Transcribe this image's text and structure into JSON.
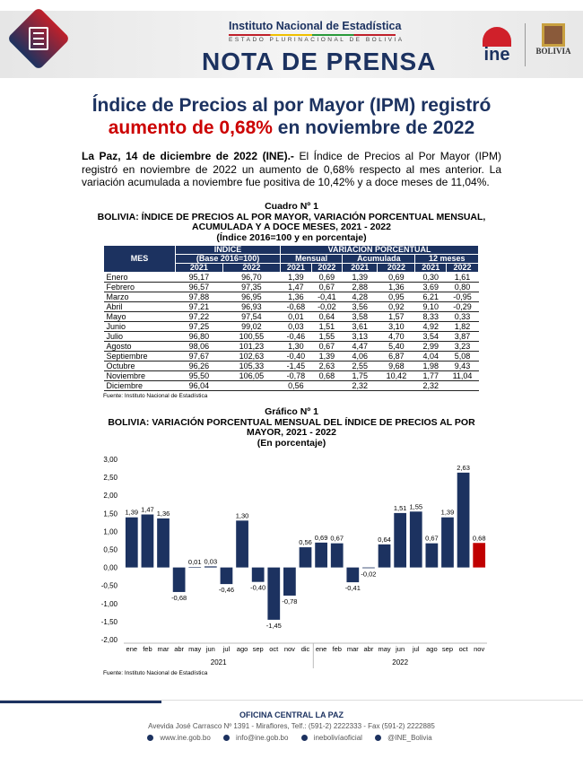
{
  "header": {
    "institute": "Instituto Nacional de Estadística",
    "subtitle": "ESTADO PLURINACIONAL DE BOLIVIA",
    "banner": "NOTA DE PRENSA",
    "logo_ine": "ine",
    "logo_bolivia": "BOLIVIA"
  },
  "title": {
    "line1": "Índice de Precios al por Mayor (IPM) registró",
    "line2_red": "aumento de 0,68%",
    "line2_rest": " en noviembre de 2022"
  },
  "lead": {
    "bold": "La Paz, 14 de diciembre de 2022 (INE).-",
    "text": " El Índice de Precios al Por Mayor (IPM) registró en noviembre de 2022 un aumento de 0,68% respecto al mes anterior. La variación acumulada a noviembre fue positiva de 10,42% y a doce meses de 11,04%."
  },
  "table": {
    "caption": "Cuadro Nº 1",
    "title1": "BOLIVIA: ÍNDICE DE PRECIOS AL POR MAYOR, VARIACIÓN PORCENTUAL MENSUAL,",
    "title2": "ACUMULADA Y A DOCE MESES, 2021 - 2022",
    "title3": "(Índice 2016=100 y en porcentaje)",
    "h_mes": "MES",
    "h_indice": "ÍNDICE",
    "h_base": "(Base 2016=100)",
    "h_var": "VARIACIÓN PORCENTUAL",
    "h_mensual": "Mensual",
    "h_acum": "Acumulada",
    "h_12": "12 meses",
    "y1": "2021",
    "y2": "2022",
    "rows": [
      [
        "Enero",
        "95,17",
        "96,70",
        "1,39",
        "0,69",
        "1,39",
        "0,69",
        "0,30",
        "1,61"
      ],
      [
        "Febrero",
        "96,57",
        "97,35",
        "1,47",
        "0,67",
        "2,88",
        "1,36",
        "3,69",
        "0,80"
      ],
      [
        "Marzo",
        "97,88",
        "96,95",
        "1,36",
        "-0,41",
        "4,28",
        "0,95",
        "6,21",
        "-0,95"
      ],
      [
        "Abril",
        "97,21",
        "96,93",
        "-0,68",
        "-0,02",
        "3,56",
        "0,92",
        "9,10",
        "-0,29"
      ],
      [
        "Mayo",
        "97,22",
        "97,54",
        "0,01",
        "0,64",
        "3,58",
        "1,57",
        "8,33",
        "0,33"
      ],
      [
        "Junio",
        "97,25",
        "99,02",
        "0,03",
        "1,51",
        "3,61",
        "3,10",
        "4,92",
        "1,82"
      ],
      [
        "Julio",
        "96,80",
        "100,55",
        "-0,46",
        "1,55",
        "3,13",
        "4,70",
        "3,54",
        "3,87"
      ],
      [
        "Agosto",
        "98,06",
        "101,23",
        "1,30",
        "0,67",
        "4,47",
        "5,40",
        "2,99",
        "3,23"
      ],
      [
        "Septiembre",
        "97,67",
        "102,63",
        "-0,40",
        "1,39",
        "4,06",
        "6,87",
        "4,04",
        "5,08"
      ],
      [
        "Octubre",
        "96,26",
        "105,33",
        "-1,45",
        "2,63",
        "2,55",
        "9,68",
        "1,98",
        "9,43"
      ],
      [
        "Noviembre",
        "95,50",
        "106,05",
        "-0,78",
        "0,68",
        "1,75",
        "10,42",
        "1,77",
        "11,04"
      ],
      [
        "Diciembre",
        "96,04",
        "",
        "0,56",
        "",
        "2,32",
        "",
        "2,32",
        ""
      ]
    ],
    "source": "Fuente: Instituto Nacional de Estadística"
  },
  "chart_data": {
    "type": "bar",
    "caption": "Gráfico Nº 1",
    "title": "BOLIVIA: VARIACIÓN PORCENTUAL MENSUAL DEL ÍNDICE DE PRECIOS AL POR MAYOR, 2021 - 2022",
    "subtitle": "(En porcentaje)",
    "ylim": [
      -2,
      3
    ],
    "yticks": [
      "3,00",
      "2,50",
      "2,00",
      "1,50",
      "1,00",
      "0,50",
      "0,00",
      "-0,50",
      "-1,00",
      "-1,50",
      "-2,00"
    ],
    "categories": [
      "ene",
      "feb",
      "mar",
      "abr",
      "may",
      "jun",
      "jul",
      "ago",
      "sep",
      "oct",
      "nov",
      "dic",
      "ene",
      "feb",
      "mar",
      "abr",
      "may",
      "jun",
      "jul",
      "ago",
      "sep",
      "oct",
      "nov"
    ],
    "groups": [
      "2021",
      "2022"
    ],
    "values": [
      1.39,
      1.47,
      1.36,
      -0.68,
      0.01,
      0.03,
      -0.46,
      1.3,
      -0.4,
      -1.45,
      -0.78,
      0.56,
      0.69,
      0.67,
      -0.41,
      -0.02,
      0.64,
      1.51,
      1.55,
      0.67,
      1.39,
      2.63,
      0.68
    ],
    "labels": [
      "1,39",
      "1,47",
      "1,36",
      "-0,68",
      "0,01",
      "0,03",
      "-0,46",
      "1,30",
      "-0,40",
      "-1,45",
      "-0,78",
      "0,56",
      "0,69",
      "0,67",
      "-0,41",
      "-0,02",
      "0,64",
      "1,51",
      "1,55",
      "0,67",
      "1,39",
      "2,63",
      "0,68"
    ],
    "colors": {
      "bar": "#1c3260",
      "highlight": "#c00000"
    },
    "source": "Fuente: Instituto Nacional de Estadística"
  },
  "footer": {
    "office": "OFICINA CENTRAL LA PAZ",
    "address": "Avevida José Carrasco Nº 1391 - Miraflores, Telf.: (591-2) 2222333 - Fax (591-2) 2222885",
    "web": "www.ine.gob.bo",
    "email": "info@ine.gob.bo",
    "facebook": "inebolivíaoficial",
    "twitter": "@INE_Bolivia"
  }
}
